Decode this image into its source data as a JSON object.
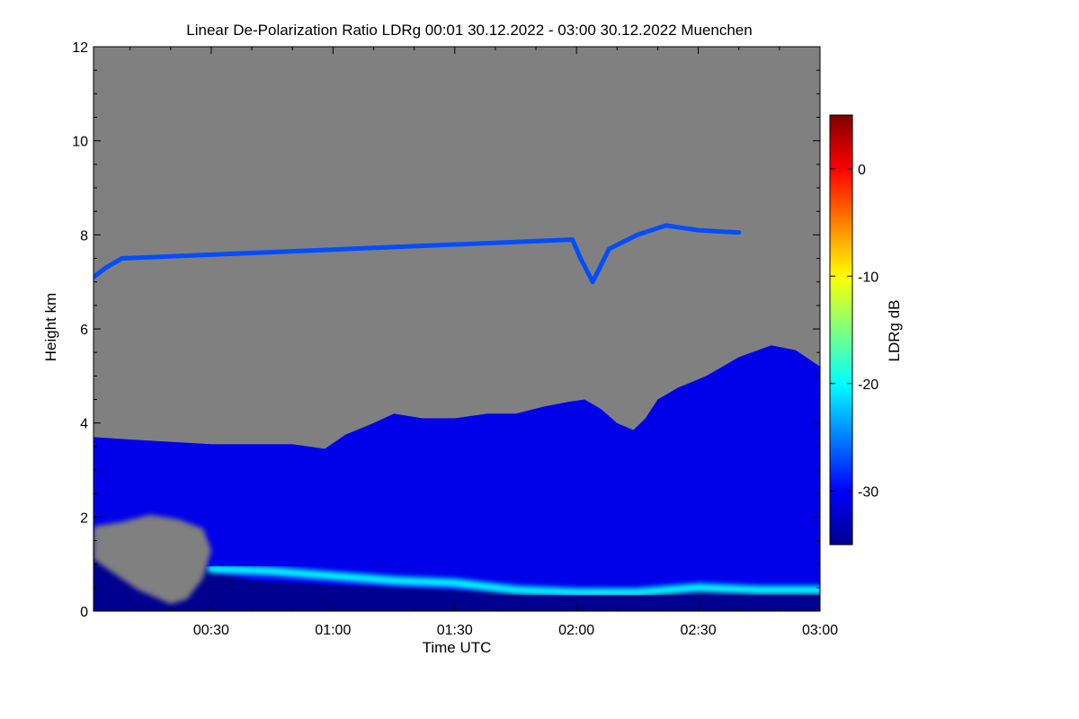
{
  "chart_data": {
    "type": "heatmap",
    "title": "Linear De-Polarization Ratio LDRg   00:01 30.12.2022 - 03:00 30.12.2022 Muenchen",
    "xlabel": "Time UTC",
    "ylabel": "Height km",
    "x_range_minutes": [
      1,
      180
    ],
    "x_ticks": [
      {
        "minute": 30,
        "label": "00:30"
      },
      {
        "minute": 60,
        "label": "01:00"
      },
      {
        "minute": 90,
        "label": "01:30"
      },
      {
        "minute": 120,
        "label": "02:00"
      },
      {
        "minute": 150,
        "label": "02:30"
      },
      {
        "minute": 180,
        "label": "03:00"
      }
    ],
    "ylim": [
      0,
      12
    ],
    "y_ticks": [
      {
        "value": 0,
        "label": "0"
      },
      {
        "value": 2,
        "label": "2"
      },
      {
        "value": 4,
        "label": "4"
      },
      {
        "value": 6,
        "label": "6"
      },
      {
        "value": 8,
        "label": "8"
      },
      {
        "value": 10,
        "label": "10"
      },
      {
        "value": 12,
        "label": "12"
      }
    ],
    "colorbar": {
      "label": "LDRg dB",
      "range": [
        -35,
        5
      ],
      "ticks": [
        {
          "value": 0,
          "label": "0"
        },
        {
          "value": -10,
          "label": "-10"
        },
        {
          "value": -20,
          "label": "-20"
        },
        {
          "value": -30,
          "label": "-30"
        }
      ],
      "colormap": [
        "#00008f",
        "#0000ff",
        "#0080ff",
        "#00ffff",
        "#80ff80",
        "#ffff00",
        "#ff8000",
        "#ff0000",
        "#800000"
      ],
      "no_data_color": "#808080"
    },
    "layers": [
      {
        "name": "cloud",
        "ldr_db": -31,
        "top_km": [
          [
            1,
            3.7
          ],
          [
            10,
            3.65
          ],
          [
            20,
            3.6
          ],
          [
            30,
            3.55
          ],
          [
            40,
            3.55
          ],
          [
            50,
            3.55
          ],
          [
            58,
            3.45
          ],
          [
            63,
            3.75
          ],
          [
            70,
            4.0
          ],
          [
            75,
            4.2
          ],
          [
            82,
            4.1
          ],
          [
            90,
            4.1
          ],
          [
            98,
            4.2
          ],
          [
            105,
            4.2
          ],
          [
            112,
            4.35
          ],
          [
            118,
            4.45
          ],
          [
            122,
            4.5
          ],
          [
            126,
            4.3
          ],
          [
            130,
            4.0
          ],
          [
            134,
            3.85
          ],
          [
            137,
            4.1
          ],
          [
            140,
            4.5
          ],
          [
            145,
            4.75
          ],
          [
            152,
            5.0
          ],
          [
            160,
            5.4
          ],
          [
            168,
            5.65
          ],
          [
            174,
            5.55
          ],
          [
            180,
            5.2
          ]
        ],
        "bottom_km": [
          [
            1,
            0.0
          ],
          [
            180,
            0.0
          ]
        ]
      },
      {
        "name": "boundary-layer",
        "ldr_db": -35,
        "top_km": [
          [
            1,
            1.6
          ],
          [
            30,
            0.85
          ],
          [
            40,
            0.65
          ],
          [
            60,
            0.55
          ],
          [
            90,
            0.45
          ],
          [
            120,
            0.35
          ],
          [
            150,
            0.45
          ],
          [
            180,
            0.4
          ]
        ],
        "bottom_km": [
          [
            1,
            0.0
          ],
          [
            180,
            0.0
          ]
        ]
      },
      {
        "name": "melting-layer",
        "ldr_db": -20,
        "points_km": [
          [
            30,
            0.9
          ],
          [
            45,
            0.85
          ],
          [
            60,
            0.75
          ],
          [
            75,
            0.65
          ],
          [
            90,
            0.6
          ],
          [
            105,
            0.45
          ],
          [
            120,
            0.4
          ],
          [
            135,
            0.4
          ],
          [
            150,
            0.5
          ],
          [
            165,
            0.45
          ],
          [
            180,
            0.45
          ]
        ]
      },
      {
        "name": "no-signal-patch",
        "ldr_db": null,
        "top_km": [
          [
            1,
            1.8
          ],
          [
            8,
            1.9
          ],
          [
            15,
            2.05
          ],
          [
            22,
            1.95
          ],
          [
            28,
            1.75
          ],
          [
            30,
            1.3
          ],
          [
            28,
            0.7
          ],
          [
            24,
            0.25
          ],
          [
            20,
            0.15
          ],
          [
            12,
            0.45
          ],
          [
            6,
            0.8
          ],
          [
            1,
            1.1
          ]
        ],
        "bottom_km": []
      },
      {
        "name": "cirrus",
        "ldr_db": -27,
        "points_km": [
          [
            1,
            7.1
          ],
          [
            4,
            7.3
          ],
          [
            8,
            7.5
          ],
          [
            119,
            7.9
          ],
          [
            121,
            7.5
          ],
          [
            124,
            7.0
          ],
          [
            128,
            7.7
          ],
          [
            135,
            8.0
          ],
          [
            142,
            8.2
          ],
          [
            150,
            8.1
          ],
          [
            160,
            8.05
          ]
        ]
      }
    ]
  }
}
